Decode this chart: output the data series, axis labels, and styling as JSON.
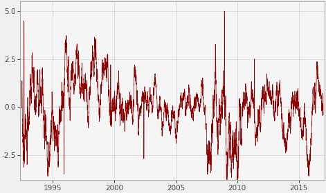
{
  "title": "",
  "xlabel": "",
  "ylabel": "",
  "xlim_start": 1992.35,
  "xlim_end": 2017.1,
  "ylim": [
    -3.8,
    5.5
  ],
  "yticks": [
    -2.5,
    0.0,
    2.5,
    5.0
  ],
  "xticks": [
    1995,
    2000,
    2005,
    2010,
    2015
  ],
  "line_color": "#8B0000",
  "background_color": "#f5f5f5",
  "linewidth": 0.5,
  "seed": 42
}
